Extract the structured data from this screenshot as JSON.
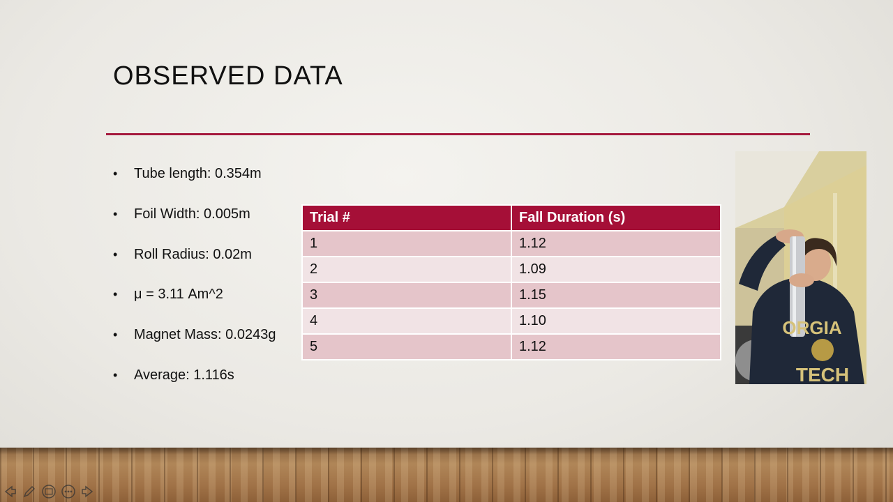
{
  "slide": {
    "title": "OBSERVED DATA",
    "bullets": [
      "Tube length: 0.354m",
      "Foil Width: 0.005m",
      "Roll Radius: 0.02m",
      "μ = 3.11 Am^2",
      "Magnet Mass: 0.0243g",
      "Average: 1.116s"
    ],
    "bullet_glyph": "•",
    "table": {
      "headers": [
        "Trial #",
        "Fall Duration (s)"
      ],
      "rows": [
        [
          "1",
          "1.12"
        ],
        [
          "2",
          "1.09"
        ],
        [
          "3",
          "1.15"
        ],
        [
          "4",
          "1.10"
        ],
        [
          "5",
          "1.12"
        ]
      ]
    },
    "photo": {
      "shirt_text_top": "ORGIA",
      "shirt_text_bottom": "TECH"
    }
  },
  "colors": {
    "accent": "#a5193d",
    "header_fill": "#a50f37",
    "row_dark": "#e5c5ca",
    "row_light": "#f1e3e5"
  },
  "toolbar": {
    "icons": [
      "arrow-left-icon",
      "pen-icon",
      "slide-view-icon",
      "more-options-icon",
      "arrow-right-icon"
    ]
  }
}
